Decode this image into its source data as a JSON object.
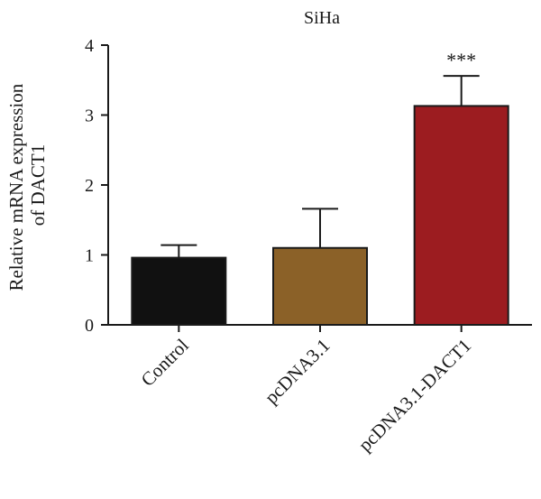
{
  "chart_data": {
    "type": "bar",
    "title": "SiHa",
    "ylabel": [
      "Relative mRNA expression",
      "of DACT1"
    ],
    "xlabel": "",
    "ylim": [
      0,
      4
    ],
    "yticks": [
      "0",
      "1",
      "2",
      "3",
      "4"
    ],
    "categories": [
      "Control",
      "pcDNA3.1",
      "pcDNA3.1-DACT1"
    ],
    "values": [
      0.96,
      1.1,
      3.13
    ],
    "errors": [
      0.18,
      0.56,
      0.43
    ],
    "colors": [
      "#111111",
      "#8b6128",
      "#9c1c20"
    ],
    "annotations": [
      "",
      "",
      "***"
    ],
    "grid": false,
    "legend": "none"
  }
}
